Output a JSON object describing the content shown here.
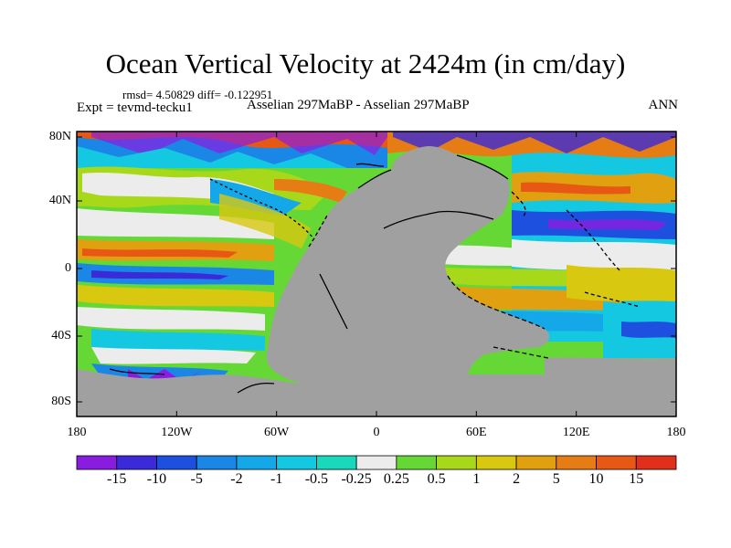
{
  "title": "Ocean Vertical Velocity at 2424m (in cm/day)",
  "stats": "rmsd= 4.50829 diff= -0.122951",
  "expt": "Expt = tevmd-tecku1",
  "centre": "Asselian 297MaBP - Asselian 297MaBP",
  "season": "ANN",
  "lat_ticks": [
    "80N",
    "40N",
    "0",
    "40S",
    "80S"
  ],
  "lon_ticks": [
    "180",
    "120W",
    "60W",
    "0",
    "60E",
    "120E",
    "180"
  ],
  "colorbar": {
    "labels": [
      "-15",
      "-10",
      "-5",
      "-2",
      "-1",
      "-0.5",
      "-0.25",
      "0.25",
      "0.5",
      "1",
      "2",
      "5",
      "10",
      "15"
    ],
    "colors": [
      "#8a1ce0",
      "#3a2ad8",
      "#1e50e0",
      "#1a86e6",
      "#14a8e8",
      "#14c8e2",
      "#19d8bc",
      "#ececec",
      "#66d836",
      "#a8d81a",
      "#d8c810",
      "#e0a010",
      "#e67c14",
      "#e65814",
      "#e0301c"
    ]
  },
  "colors": {
    "land": "#a0a0a0",
    "ice_free": "#ececec"
  }
}
